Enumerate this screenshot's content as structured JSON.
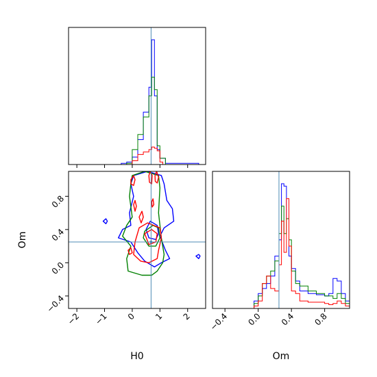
{
  "chart_data": {
    "type": "corner",
    "parameters": [
      "H0",
      "Om"
    ],
    "truth": {
      "H0": 0.68,
      "Om": 0.25
    },
    "truth_color": "#4c8bb5",
    "xlabels": {
      "H0": "H0",
      "Om": "Om"
    },
    "ylabel": "Om",
    "ranges": {
      "H0": [
        -2.3,
        2.65
      ],
      "Om": [
        -0.55,
        1.1
      ]
    },
    "ticks": {
      "H0": {
        "values": [
          -2,
          -1,
          0,
          1,
          2
        ],
        "labels": [
          "−2",
          "−1",
          "0",
          "1",
          "2"
        ]
      },
      "Om_y": {
        "values": [
          -0.4,
          0.0,
          0.4,
          0.8
        ],
        "labels": [
          "−0.4",
          "0.0",
          "0.4",
          "0.8"
        ]
      },
      "Om_x": {
        "values": [
          -0.4,
          0.0,
          0.4,
          0.8
        ],
        "labels": [
          "−0.4",
          "0.0",
          "0.4",
          "0.8"
        ]
      }
    },
    "series": [
      {
        "color": "#0000ff",
        "hist_H0": {
          "edges": [
            -0.4,
            -0.2,
            0.0,
            0.2,
            0.4,
            0.6,
            0.7,
            0.8,
            0.9,
            1.0,
            1.2,
            2.4
          ],
          "counts": [
            0.01,
            0.02,
            0.06,
            0.2,
            0.42,
            0.62,
            1.0,
            0.55,
            0.12,
            0.05,
            0.01
          ]
        },
        "hist_Om": {
          "edges": [
            -0.05,
            0.0,
            0.05,
            0.1,
            0.15,
            0.2,
            0.25,
            0.28,
            0.31,
            0.34,
            0.37,
            0.4,
            0.45,
            0.5,
            0.6,
            0.7,
            0.8,
            0.85,
            0.9,
            0.95,
            1.0,
            1.05,
            1.1
          ],
          "counts": [
            0.06,
            0.12,
            0.16,
            0.2,
            0.26,
            0.42,
            0.55,
            1.0,
            0.98,
            0.72,
            0.42,
            0.32,
            0.22,
            0.14,
            0.12,
            0.11,
            0.1,
            0.12,
            0.24,
            0.22,
            0.12,
            0.06
          ]
        },
        "contours": [
          [
            [
              0.05,
              1.05
            ],
            [
              0.55,
              1.1
            ],
            [
              1.05,
              1.05
            ],
            [
              1.15,
              0.95
            ],
            [
              1.25,
              0.75
            ],
            [
              1.45,
              0.65
            ],
            [
              1.5,
              0.5
            ],
            [
              1.15,
              0.42
            ],
            [
              1.0,
              0.32
            ],
            [
              1.2,
              0.15
            ],
            [
              1.35,
              0.05
            ],
            [
              1.05,
              0.0
            ],
            [
              0.8,
              -0.05
            ],
            [
              0.45,
              0.02
            ],
            [
              0.2,
              0.12
            ],
            [
              -0.05,
              0.25
            ],
            [
              -0.5,
              0.3
            ],
            [
              -0.35,
              0.4
            ],
            [
              -0.05,
              0.45
            ],
            [
              -0.1,
              0.6
            ],
            [
              0.05,
              0.8
            ],
            [
              -0.05,
              0.95
            ]
          ],
          [
            [
              0.65,
              0.5
            ],
            [
              0.9,
              0.45
            ],
            [
              0.95,
              0.35
            ],
            [
              0.85,
              0.28
            ],
            [
              0.6,
              0.3
            ],
            [
              0.5,
              0.4
            ]
          ],
          [
            [
              -1.05,
              0.5
            ],
            [
              -0.95,
              0.47
            ],
            [
              -0.9,
              0.5
            ],
            [
              -0.95,
              0.53
            ]
          ],
          [
            [
              2.3,
              0.08
            ],
            [
              2.4,
              0.05
            ],
            [
              2.45,
              0.08
            ],
            [
              2.4,
              0.1
            ]
          ]
        ]
      },
      {
        "color": "#008000",
        "hist_H0": {
          "edges": [
            -0.2,
            0.0,
            0.2,
            0.4,
            0.6,
            0.7,
            0.8,
            0.9,
            1.0,
            1.2
          ],
          "counts": [
            0.01,
            0.12,
            0.24,
            0.38,
            0.55,
            0.7,
            0.6,
            0.15,
            0.05
          ]
        },
        "hist_Om": {
          "edges": [
            -0.05,
            0.0,
            0.05,
            0.1,
            0.15,
            0.2,
            0.25,
            0.28,
            0.31,
            0.34,
            0.37,
            0.4,
            0.45,
            0.5,
            0.6,
            0.7,
            0.8,
            0.85,
            0.9,
            0.95,
            1.0,
            1.05,
            1.1
          ],
          "counts": [
            0.04,
            0.1,
            0.2,
            0.26,
            0.3,
            0.38,
            0.6,
            0.82,
            0.6,
            0.72,
            0.55,
            0.3,
            0.2,
            0.18,
            0.14,
            0.12,
            0.1,
            0.1,
            0.08,
            0.12,
            0.08,
            0.04
          ]
        },
        "contours": [
          [
            [
              0.0,
              1.05
            ],
            [
              0.45,
              1.1
            ],
            [
              0.95,
              1.05
            ],
            [
              1.0,
              0.9
            ],
            [
              0.95,
              0.6
            ],
            [
              1.05,
              0.3
            ],
            [
              1.15,
              0.1
            ],
            [
              1.1,
              0.0
            ],
            [
              0.9,
              -0.1
            ],
            [
              0.7,
              -0.15
            ],
            [
              0.35,
              -0.15
            ],
            [
              -0.15,
              -0.1
            ],
            [
              -0.2,
              0.05
            ],
            [
              -0.05,
              0.2
            ],
            [
              -0.35,
              0.32
            ],
            [
              -0.2,
              0.45
            ],
            [
              0.0,
              0.55
            ],
            [
              -0.1,
              0.8
            ],
            [
              -0.05,
              0.95
            ]
          ],
          [
            [
              0.45,
              0.38
            ],
            [
              0.75,
              0.45
            ],
            [
              0.95,
              0.42
            ],
            [
              1.0,
              0.3
            ],
            [
              0.85,
              0.2
            ],
            [
              0.6,
              0.2
            ],
            [
              0.4,
              0.3
            ]
          ]
        ]
      },
      {
        "color": "#ff0000",
        "hist_H0": {
          "edges": [
            0.0,
            0.2,
            0.4,
            0.6,
            0.7,
            0.8,
            0.9,
            1.0,
            1.1
          ],
          "counts": [
            0.03,
            0.08,
            0.1,
            0.12,
            0.14,
            0.13,
            0.11,
            0.02
          ]
        },
        "hist_Om": {
          "edges": [
            -0.05,
            0.0,
            0.05,
            0.1,
            0.15,
            0.2,
            0.25,
            0.28,
            0.31,
            0.34,
            0.37,
            0.4,
            0.45,
            0.5,
            0.6,
            0.7,
            0.8,
            0.85,
            0.9,
            0.95,
            1.0,
            1.05,
            1.1
          ],
          "counts": [
            0.02,
            0.06,
            0.2,
            0.26,
            0.16,
            0.14,
            0.35,
            0.7,
            0.45,
            0.88,
            0.5,
            0.14,
            0.12,
            0.06,
            0.05,
            0.05,
            0.04,
            0.03,
            0.04,
            0.06,
            0.04,
            0.02
          ]
        },
        "contours": [
          [
            [
              -0.05,
              1.0
            ],
            [
              0.05,
              1.05
            ],
            [
              0.1,
              1.0
            ],
            [
              0.05,
              0.93
            ],
            [
              -0.05,
              0.95
            ]
          ],
          [
            [
              0.6,
              1.05
            ],
            [
              0.65,
              1.1
            ],
            [
              0.72,
              1.05
            ],
            [
              0.7,
              0.95
            ],
            [
              0.62,
              0.97
            ]
          ],
          [
            [
              0.82,
              1.05
            ],
            [
              0.88,
              1.1
            ],
            [
              0.95,
              1.03
            ],
            [
              0.9,
              0.96
            ],
            [
              0.83,
              0.98
            ]
          ],
          [
            [
              0.05,
              0.7
            ],
            [
              0.1,
              0.75
            ],
            [
              0.15,
              0.68
            ],
            [
              0.1,
              0.62
            ]
          ],
          [
            [
              0.25,
              0.55
            ],
            [
              0.35,
              0.62
            ],
            [
              0.4,
              0.55
            ],
            [
              0.32,
              0.48
            ]
          ],
          [
            [
              0.7,
              0.73
            ],
            [
              0.75,
              0.77
            ],
            [
              0.78,
              0.7
            ],
            [
              0.72,
              0.67
            ]
          ],
          [
            [
              0.25,
              0.42
            ],
            [
              0.55,
              0.48
            ],
            [
              1.0,
              0.42
            ],
            [
              1.05,
              0.3
            ],
            [
              0.95,
              0.15
            ],
            [
              0.9,
              0.05
            ],
            [
              0.6,
              0.0
            ],
            [
              0.3,
              0.02
            ],
            [
              0.05,
              0.1
            ],
            [
              0.1,
              0.25
            ]
          ],
          [
            [
              -0.15,
              0.15
            ],
            [
              -0.05,
              0.18
            ],
            [
              0.0,
              0.12
            ],
            [
              -0.1,
              0.1
            ]
          ],
          [
            [
              0.45,
              0.35
            ],
            [
              0.7,
              0.4
            ],
            [
              0.9,
              0.35
            ],
            [
              0.85,
              0.25
            ],
            [
              0.6,
              0.22
            ]
          ]
        ]
      }
    ],
    "grid": false,
    "legend": "none"
  }
}
